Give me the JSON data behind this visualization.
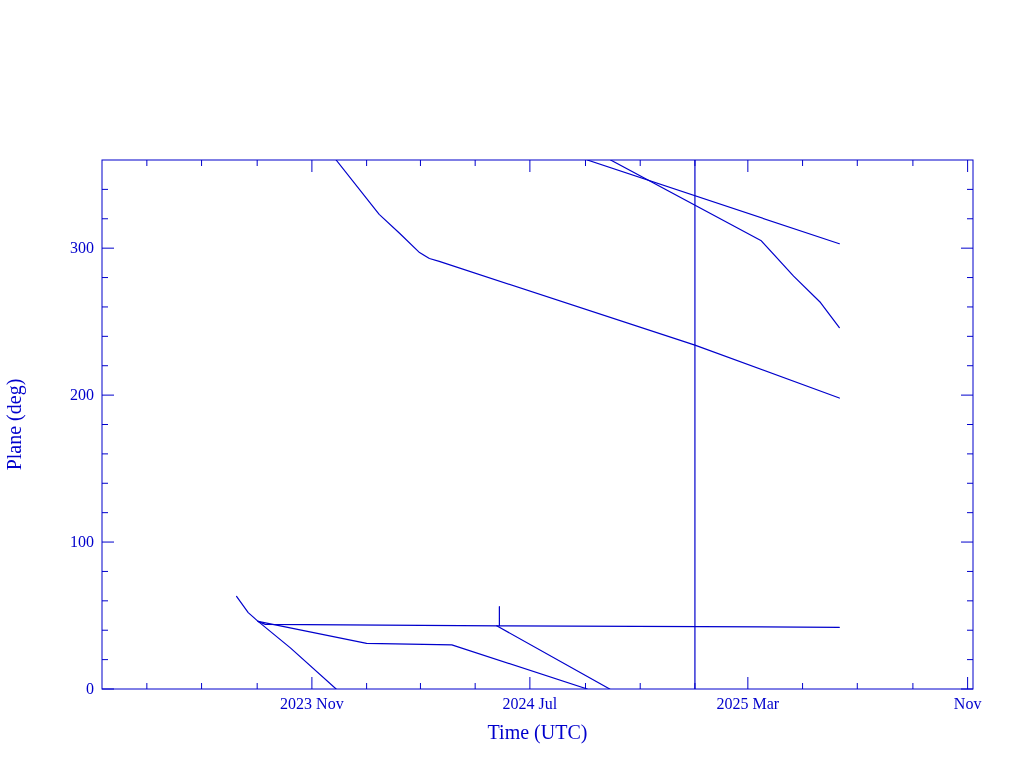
{
  "chart_data": {
    "type": "line",
    "xlabel": "Time (UTC)",
    "ylabel": "Plane (deg)",
    "xlim": [
      "2023-03-12",
      "2025-11-07"
    ],
    "ylim": [
      0,
      360
    ],
    "xticks": [
      {
        "value": "2023-05-01",
        "label": null
      },
      {
        "value": "2023-07-01",
        "label": null
      },
      {
        "value": "2023-09-01",
        "label": null
      },
      {
        "value": "2023-11-01",
        "label": "2023 Nov"
      },
      {
        "value": "2024-01-01",
        "label": null
      },
      {
        "value": "2024-03-01",
        "label": null
      },
      {
        "value": "2024-05-01",
        "label": null
      },
      {
        "value": "2024-07-01",
        "label": "2024 Jul"
      },
      {
        "value": "2024-09-01",
        "label": null
      },
      {
        "value": "2024-11-01",
        "label": null
      },
      {
        "value": "2025-01-01",
        "label": null
      },
      {
        "value": "2025-03-01",
        "label": "2025 Mar"
      },
      {
        "value": "2025-05-01",
        "label": null
      },
      {
        "value": "2025-07-01",
        "label": null
      },
      {
        "value": "2025-09-01",
        "label": null
      },
      {
        "value": "2025-11-01",
        "label": "Nov"
      }
    ],
    "yticks": [
      0,
      {
        "value": 20,
        "label": null
      },
      {
        "value": 40,
        "label": null
      },
      {
        "value": 60,
        "label": null
      },
      {
        "value": 80,
        "label": null
      },
      100,
      {
        "value": 120,
        "label": null
      },
      {
        "value": 140,
        "label": null
      },
      {
        "value": 160,
        "label": null
      },
      {
        "value": 180,
        "label": null
      },
      200,
      {
        "value": 220,
        "label": null
      },
      {
        "value": 240,
        "label": null
      },
      {
        "value": 260,
        "label": null
      },
      {
        "value": 280,
        "label": null
      },
      300,
      {
        "value": 320,
        "label": null
      },
      {
        "value": 340,
        "label": null
      }
    ],
    "grid": false,
    "marker": "none",
    "line_style": "solid",
    "series": [
      {
        "color": "#0000cc",
        "x": [
          "2023-11-28",
          "2024-01-15",
          "2024-02-07",
          "2024-02-29",
          "2024-03-11",
          "2024-03-22",
          "2025-01-01",
          "2025-06-11"
        ],
        "values": [
          360,
          323,
          310,
          297,
          293,
          291,
          234,
          198
        ]
      },
      {
        "color": "#0000cc",
        "x": [
          "2024-09-03",
          "2025-06-11"
        ],
        "values": [
          360,
          303
        ]
      },
      {
        "color": "#0000cc",
        "x": [
          "2024-09-29",
          "2025-03-16",
          "2025-04-21",
          "2025-05-21",
          "2025-06-11"
        ],
        "values": [
          360,
          305,
          281,
          263,
          246
        ]
      },
      {
        "color": "#0000cc",
        "x": [
          "2023-08-09",
          "2023-08-22",
          "2023-09-02",
          "2023-09-10",
          "2024-05-28",
          "2024-05-28",
          "2024-05-28",
          "2025-06-11"
        ],
        "values": [
          63,
          52,
          46,
          44,
          43,
          56,
          43,
          42
        ]
      },
      {
        "color": "#0000cc",
        "x": [
          "2023-09-02",
          "2023-10-08",
          "2023-11-28"
        ],
        "values": [
          46,
          28,
          0
        ]
      },
      {
        "color": "#0000cc",
        "x": [
          "2023-09-02",
          "2024-01-01",
          "2024-04-05",
          "2024-09-03"
        ],
        "values": [
          46,
          31,
          30,
          0
        ]
      },
      {
        "color": "#0000cc",
        "x": [
          "2024-05-25",
          "2024-09-28"
        ],
        "values": [
          43,
          0
        ]
      }
    ],
    "ref_lines": [
      {
        "axis": "x",
        "value": "2025-01-01",
        "color": "#0000cc",
        "line_style": "solid"
      }
    ]
  }
}
